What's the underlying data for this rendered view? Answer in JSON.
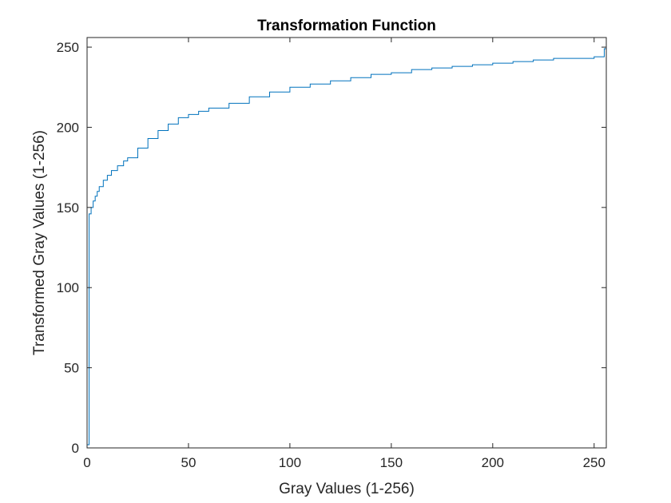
{
  "chart_data": {
    "type": "line",
    "title": "Transformation Function",
    "xlabel": "Gray Values (1-256)",
    "ylabel": "Transformed Gray Values (1-256)",
    "xlim": [
      0,
      256
    ],
    "ylim": [
      0,
      256
    ],
    "xticks": [
      0,
      50,
      100,
      150,
      200,
      250
    ],
    "yticks": [
      0,
      50,
      100,
      150,
      200,
      250
    ],
    "grid": false,
    "box": true,
    "step": true,
    "line_color": "#0072BD",
    "series": [
      {
        "x": [
          0,
          1,
          2,
          3,
          4,
          5,
          6,
          8,
          10,
          12,
          15,
          18,
          20,
          25,
          30,
          35,
          40,
          45,
          50,
          55,
          60,
          70,
          80,
          90,
          100,
          110,
          120,
          130,
          140,
          150,
          160,
          170,
          180,
          190,
          200,
          210,
          220,
          230,
          240,
          250,
          254,
          255,
          256
        ],
        "y": [
          2,
          146,
          150,
          154,
          157,
          160,
          163,
          167,
          170,
          173,
          176,
          179,
          181,
          187,
          193,
          198,
          202,
          206,
          208,
          210,
          212,
          215,
          219,
          222,
          225,
          227,
          229,
          231,
          233,
          234,
          236,
          237,
          238,
          239,
          240,
          241,
          242,
          243,
          243,
          244,
          244,
          249,
          256
        ]
      }
    ]
  }
}
